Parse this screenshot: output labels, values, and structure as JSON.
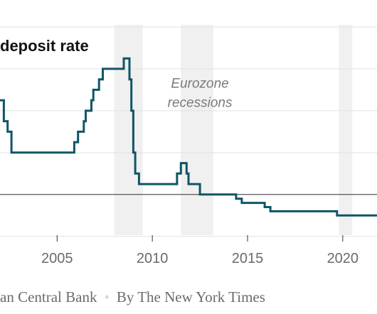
{
  "chart_data": {
    "type": "line",
    "title": "deposit rate",
    "xlabel": "",
    "ylabel": "",
    "xlim": [
      2002.0,
      2021.8
    ],
    "ylim": [
      -0.97,
      4.05
    ],
    "x_ticks": [
      "2005",
      "2010",
      "2015",
      "2020"
    ],
    "x_tick_values": [
      2005,
      2010,
      2015,
      2020
    ],
    "y_gridlines": [
      4,
      3,
      2,
      1,
      0,
      -1
    ],
    "zero_line": 0,
    "grid": "horizontal",
    "recession_bands": [
      [
        2008.0,
        2009.5
      ],
      [
        2011.5,
        2013.2
      ],
      [
        2019.8,
        2020.5
      ]
    ],
    "annotations": [
      {
        "lines": [
          "Eurozone",
          "recessions"
        ],
        "x": 2012.5,
        "y": 2.5
      }
    ],
    "series": [
      {
        "line_color": "#0f5566",
        "points": [
          [
            2002.0,
            2.25
          ],
          [
            2002.2,
            2.25
          ],
          [
            2002.2,
            1.75
          ],
          [
            2002.4,
            1.75
          ],
          [
            2002.4,
            1.5
          ],
          [
            2002.6,
            1.5
          ],
          [
            2002.6,
            1.0
          ],
          [
            2005.9,
            1.0
          ],
          [
            2005.9,
            1.25
          ],
          [
            2006.1,
            1.25
          ],
          [
            2006.1,
            1.5
          ],
          [
            2006.4,
            1.5
          ],
          [
            2006.4,
            1.75
          ],
          [
            2006.5,
            1.75
          ],
          [
            2006.5,
            2.0
          ],
          [
            2006.8,
            2.0
          ],
          [
            2006.8,
            2.25
          ],
          [
            2006.9,
            2.25
          ],
          [
            2006.9,
            2.5
          ],
          [
            2007.2,
            2.5
          ],
          [
            2007.2,
            2.75
          ],
          [
            2007.4,
            2.75
          ],
          [
            2007.4,
            3.0
          ],
          [
            2008.5,
            3.0
          ],
          [
            2008.5,
            3.25
          ],
          [
            2008.8,
            3.25
          ],
          [
            2008.8,
            2.75
          ],
          [
            2008.9,
            2.75
          ],
          [
            2008.9,
            2.0
          ],
          [
            2009.0,
            2.0
          ],
          [
            2009.0,
            1.0
          ],
          [
            2009.1,
            1.0
          ],
          [
            2009.1,
            0.5
          ],
          [
            2009.3,
            0.5
          ],
          [
            2009.3,
            0.25
          ],
          [
            2011.3,
            0.25
          ],
          [
            2011.3,
            0.5
          ],
          [
            2011.5,
            0.5
          ],
          [
            2011.5,
            0.75
          ],
          [
            2011.8,
            0.75
          ],
          [
            2011.8,
            0.5
          ],
          [
            2011.9,
            0.5
          ],
          [
            2011.9,
            0.25
          ],
          [
            2012.5,
            0.25
          ],
          [
            2012.5,
            0.0
          ],
          [
            2014.4,
            0.0
          ],
          [
            2014.4,
            -0.1
          ],
          [
            2014.7,
            -0.1
          ],
          [
            2014.7,
            -0.2
          ],
          [
            2015.9,
            -0.2
          ],
          [
            2015.9,
            -0.3
          ],
          [
            2016.2,
            -0.3
          ],
          [
            2016.2,
            -0.4
          ],
          [
            2019.7,
            -0.4
          ],
          [
            2019.7,
            -0.5
          ],
          [
            2021.8,
            -0.5
          ]
        ]
      }
    ]
  },
  "title": "deposit rate",
  "credit": {
    "source": "an Central Bank",
    "separator": "•",
    "byline": "By The New York Times"
  }
}
